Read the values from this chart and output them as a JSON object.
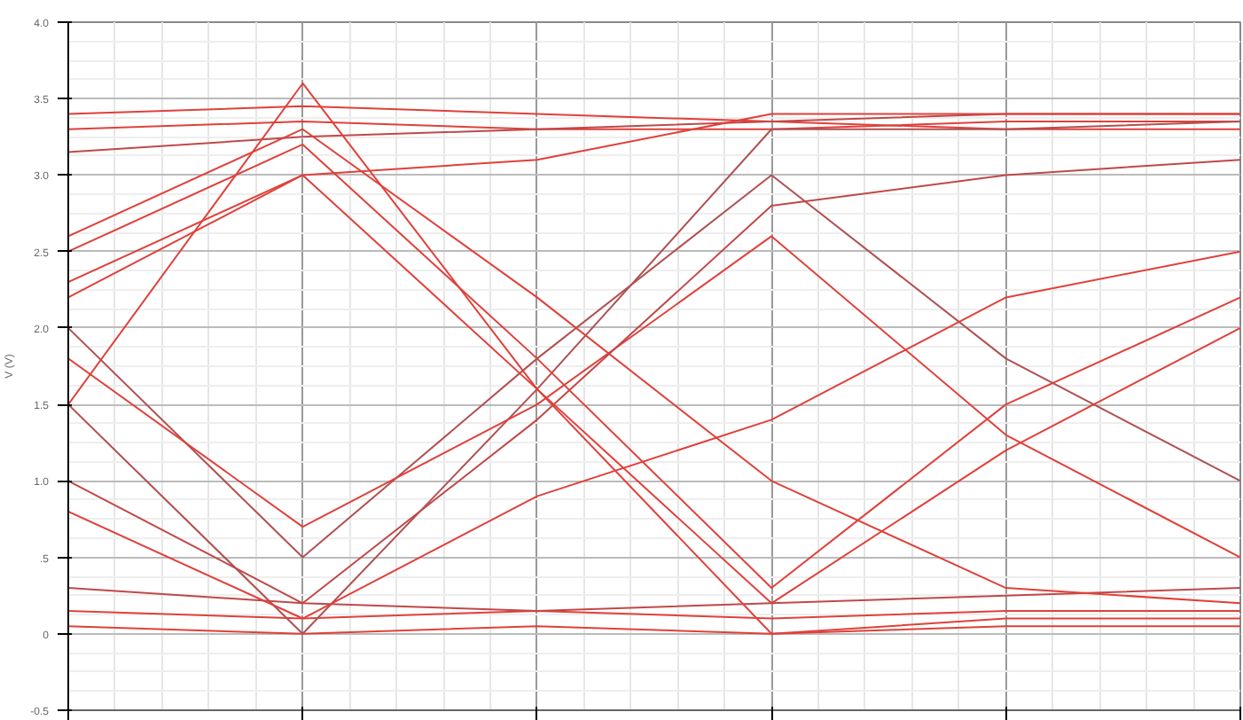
{
  "chart_data": {
    "type": "line",
    "ylabel": "V (V)",
    "categories": [
      null,
      null,
      null,
      null,
      null,
      null
    ],
    "ylim": [
      -0.5,
      4.0
    ],
    "yticks": [
      {
        "value": -0.5,
        "label": "-0.5"
      },
      {
        "value": 0,
        "label": "0"
      },
      {
        "value": 0.5,
        "label": ".5"
      },
      {
        "value": 1.0,
        "label": "1.0"
      },
      {
        "value": 1.5,
        "label": "1.5"
      },
      {
        "value": 2.0,
        "label": "2.0"
      },
      {
        "value": 2.5,
        "label": "2.5"
      },
      {
        "value": 3.0,
        "label": "3.0"
      },
      {
        "value": 3.5,
        "label": "3.5"
      },
      {
        "value": 4.0,
        "label": "4.0"
      }
    ],
    "grid": true,
    "marker": "none",
    "line_style": "solid",
    "series": [
      {
        "color": "#e0403a",
        "values": [
          3.3,
          3.35,
          3.3,
          3.3,
          3.35,
          3.35
        ]
      },
      {
        "color": "#e0403a",
        "values": [
          3.4,
          3.45,
          3.4,
          3.35,
          3.3,
          3.3
        ]
      },
      {
        "color": "#c04848",
        "values": [
          3.15,
          3.25,
          3.3,
          3.35,
          3.4,
          3.4
        ]
      },
      {
        "color": "#e0403a",
        "values": [
          0.15,
          0.1,
          0.15,
          0.1,
          0.15,
          0.15
        ]
      },
      {
        "color": "#e0403a",
        "values": [
          0.05,
          0.0,
          0.05,
          0.0,
          0.05,
          0.05
        ]
      },
      {
        "color": "#c04848",
        "values": [
          0.3,
          0.2,
          0.15,
          0.2,
          0.25,
          0.3
        ]
      },
      {
        "color": "#e0403a",
        "values": [
          1.5,
          3.6,
          1.6,
          0.0,
          0.1,
          0.1
        ]
      },
      {
        "color": "#b05050",
        "values": [
          1.5,
          0.0,
          1.6,
          3.3,
          3.3,
          3.35
        ]
      },
      {
        "color": "#e0403a",
        "values": [
          2.2,
          3.0,
          3.1,
          3.4,
          3.4,
          3.4
        ]
      },
      {
        "color": "#e0403a",
        "values": [
          2.5,
          3.2,
          1.8,
          0.3,
          1.5,
          2.2
        ]
      },
      {
        "color": "#b05050",
        "values": [
          2.0,
          0.5,
          1.8,
          3.0,
          1.8,
          1.0
        ]
      },
      {
        "color": "#e0403a",
        "values": [
          1.8,
          0.7,
          1.5,
          2.6,
          1.3,
          0.5
        ]
      },
      {
        "color": "#e0403a",
        "values": [
          2.6,
          3.3,
          2.2,
          1.0,
          0.3,
          0.2
        ]
      },
      {
        "color": "#c04848",
        "values": [
          1.0,
          0.2,
          1.4,
          2.8,
          3.0,
          3.1
        ]
      },
      {
        "color": "#e0403a",
        "values": [
          2.3,
          3.0,
          1.6,
          0.2,
          1.2,
          2.0
        ]
      },
      {
        "color": "#e0403a",
        "values": [
          0.8,
          0.1,
          0.9,
          1.4,
          2.2,
          2.5
        ]
      }
    ]
  }
}
